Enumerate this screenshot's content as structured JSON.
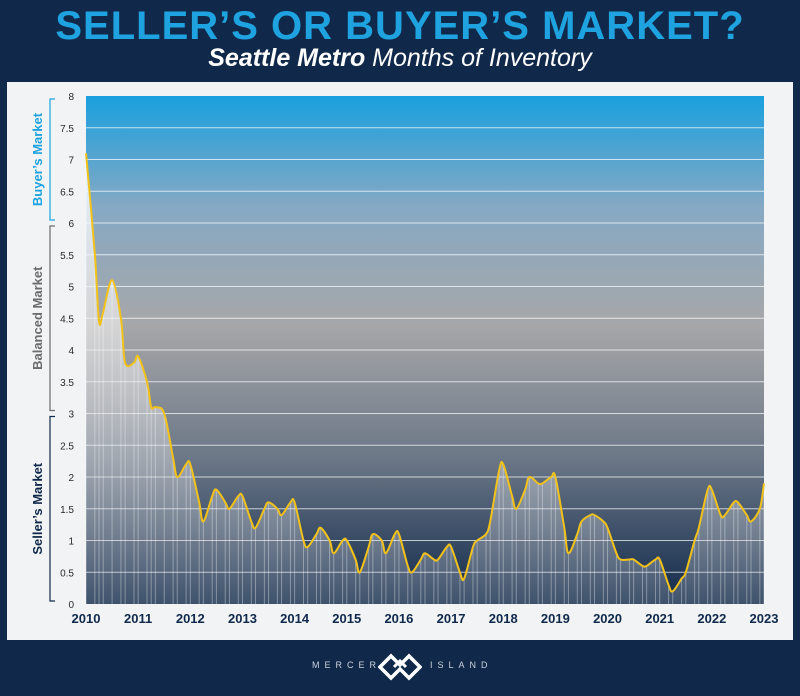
{
  "title": "SELLER’S OR BUYER’S MARKET?",
  "subtitle": {
    "bold": "Seattle Metro",
    "rest": " Months of Inventory"
  },
  "footer": {
    "left": "MERCER",
    "right": "ISLAND"
  },
  "colors": {
    "header_bg": "#10294a",
    "title": "#1ea3e0",
    "line": "#f2c21a",
    "buyer_label": "#1ea3e0",
    "balanced_label": "#6b6b6b",
    "seller_label": "#10294a"
  },
  "bands": [
    {
      "label": "Buyer’s Market",
      "from": 6,
      "to": 8
    },
    {
      "label": "Balanced Market",
      "from": 3,
      "to": 6
    },
    {
      "label": "Seller’s Market",
      "from": 0,
      "to": 3
    }
  ],
  "chart_data": {
    "type": "area",
    "title": "SELLER’S OR BUYER’S MARKET?",
    "subtitle": "Seattle Metro Months of Inventory",
    "xlabel": "",
    "ylabel": "",
    "xlim": [
      2010,
      2023
    ],
    "ylim": [
      0,
      8
    ],
    "y_ticks": [
      "0",
      "0.5",
      "1",
      "1.5",
      "2",
      "2.5",
      "3",
      "3.5",
      "4",
      "4.5",
      "5",
      "5.5",
      "6",
      "6.5",
      "7",
      "7.5",
      "8"
    ],
    "x_ticks": [
      "2010",
      "2011",
      "2012",
      "2013",
      "2014",
      "2015",
      "2016",
      "2017",
      "2018",
      "2019",
      "2020",
      "2021",
      "2022",
      "2023"
    ],
    "grid": true,
    "series": [
      {
        "x": [
          2010.0,
          2010.17,
          2010.25,
          2010.33,
          2010.5,
          2010.67,
          2010.75,
          2010.92,
          2011.0,
          2011.17,
          2011.25,
          2011.33,
          2011.5,
          2011.67,
          2011.75,
          2011.92,
          2012.0,
          2012.17,
          2012.25,
          2012.42,
          2012.5,
          2012.67,
          2012.75,
          2012.92,
          2013.0,
          2013.17,
          2013.25,
          2013.42,
          2013.5,
          2013.67,
          2013.75,
          2013.92,
          2014.0,
          2014.17,
          2014.25,
          2014.42,
          2014.5,
          2014.67,
          2014.75,
          2014.92,
          2015.0,
          2015.17,
          2015.25,
          2015.42,
          2015.5,
          2015.67,
          2015.75,
          2015.92,
          2016.0,
          2016.17,
          2016.25,
          2016.42,
          2016.5,
          2016.67,
          2016.75,
          2016.92,
          2017.0,
          2017.17,
          2017.25,
          2017.42,
          2017.5,
          2017.67,
          2017.75,
          2017.92,
          2018.0,
          2018.17,
          2018.25,
          2018.42,
          2018.5,
          2018.67,
          2018.75,
          2018.92,
          2019.0,
          2019.17,
          2019.25,
          2019.42,
          2019.5,
          2019.67,
          2019.75,
          2019.92,
          2020.0,
          2020.17,
          2020.25,
          2020.42,
          2020.5,
          2020.67,
          2020.75,
          2020.92,
          2021.0,
          2021.17,
          2021.25,
          2021.42,
          2021.5,
          2021.67,
          2021.75,
          2021.92,
          2022.0,
          2022.17,
          2022.25,
          2022.42,
          2022.5,
          2022.67,
          2022.75,
          2022.92,
          2023.0
        ],
        "values": [
          7.1,
          5.5,
          4.45,
          4.6,
          5.1,
          4.5,
          3.8,
          3.8,
          3.9,
          3.5,
          3.1,
          3.1,
          3.0,
          2.3,
          2.0,
          2.2,
          2.2,
          1.6,
          1.3,
          1.7,
          1.8,
          1.6,
          1.5,
          1.7,
          1.7,
          1.3,
          1.2,
          1.5,
          1.6,
          1.5,
          1.4,
          1.6,
          1.6,
          1.0,
          0.9,
          1.1,
          1.2,
          1.0,
          0.8,
          1.0,
          1.0,
          0.7,
          0.5,
          0.9,
          1.1,
          1.0,
          0.8,
          1.1,
          1.1,
          0.6,
          0.5,
          0.7,
          0.8,
          0.7,
          0.7,
          0.9,
          0.9,
          0.5,
          0.4,
          0.9,
          1.0,
          1.1,
          1.3,
          2.1,
          2.2,
          1.7,
          1.5,
          1.8,
          2.0,
          1.9,
          1.9,
          2.0,
          2.0,
          1.2,
          0.8,
          1.1,
          1.3,
          1.4,
          1.4,
          1.3,
          1.2,
          0.8,
          0.7,
          0.7,
          0.7,
          0.6,
          0.6,
          0.7,
          0.7,
          0.3,
          0.2,
          0.4,
          0.5,
          1.0,
          1.2,
          1.8,
          1.8,
          1.4,
          1.4,
          1.6,
          1.6,
          1.4,
          1.3,
          1.5,
          1.9
        ]
      }
    ]
  }
}
